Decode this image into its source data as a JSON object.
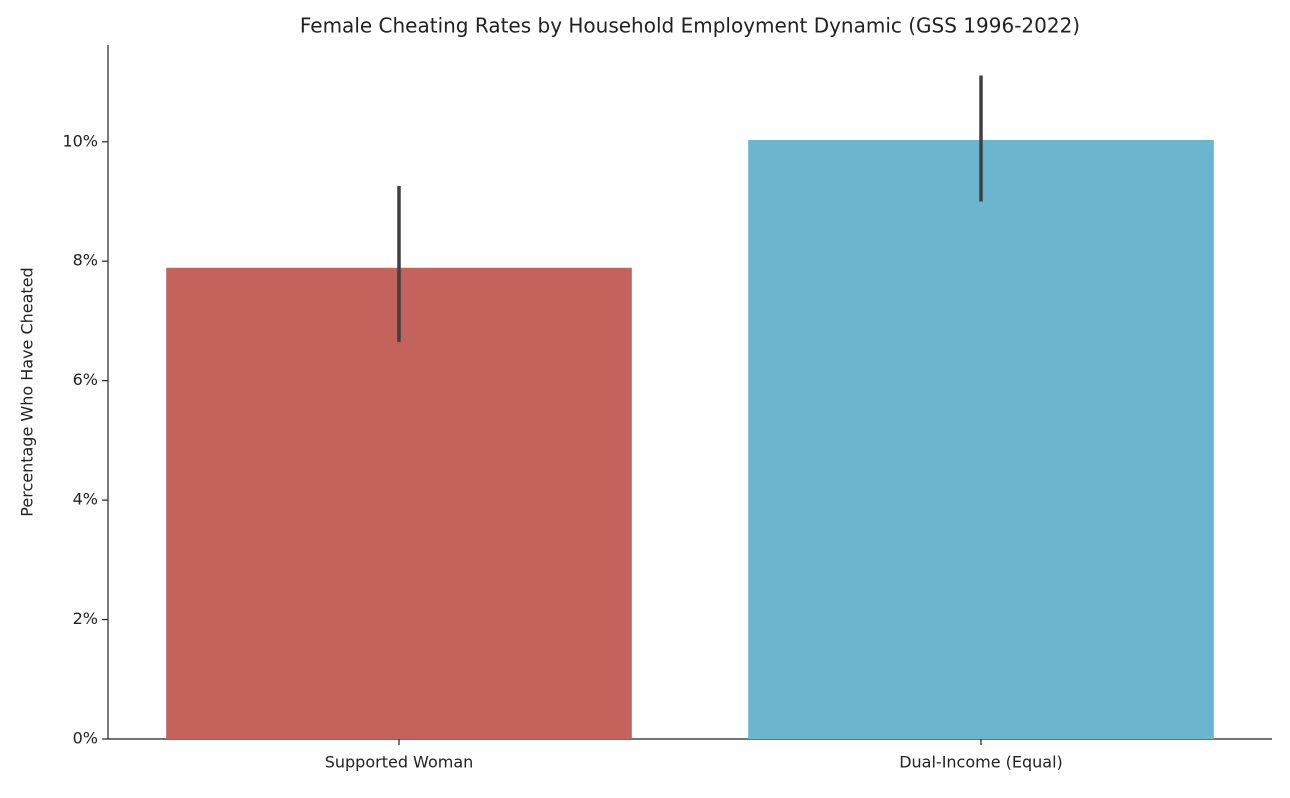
{
  "chart_data": {
    "type": "bar",
    "title": "Female Cheating Rates by Household Employment Dynamic (GSS 1996-2022)",
    "ylabel": "Percentage Who Have Cheated",
    "categories": [
      "Supported Woman",
      "Dual-Income (Equal)"
    ],
    "values": [
      7.89,
      10.03
    ],
    "ci_low": [
      6.65,
      9.0
    ],
    "ci_high": [
      9.26,
      11.11
    ],
    "colors": [
      "#c4625c",
      "#6bb5cf"
    ],
    "error_color": "#404040",
    "ylim": [
      0,
      11.62
    ],
    "yticks": [
      {
        "value": 0,
        "label": "0%"
      },
      {
        "value": 2,
        "label": "2%"
      },
      {
        "value": 4,
        "label": "4%"
      },
      {
        "value": 6,
        "label": "6%"
      },
      {
        "value": 8,
        "label": "8%"
      },
      {
        "value": 10,
        "label": "10%"
      }
    ],
    "grid": false
  }
}
